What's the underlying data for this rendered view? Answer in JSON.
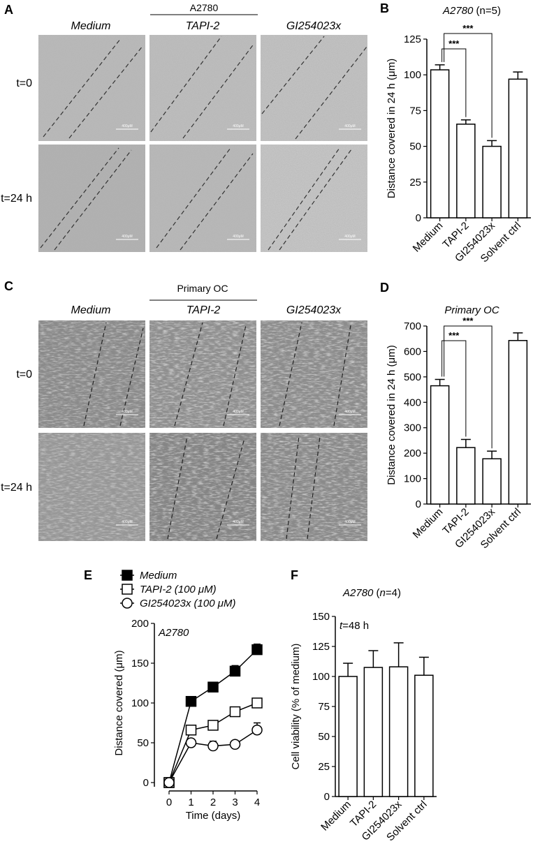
{
  "labels": {
    "A": "A",
    "B": "B",
    "C": "C",
    "D": "D",
    "E": "E",
    "F": "F"
  },
  "micrographs": [
    {
      "group": "A2780",
      "columns": [
        "Medium",
        "TAPI-2",
        "GI254023x"
      ],
      "rows": [
        "t=0",
        "t=24 h"
      ],
      "scale_bar": "400μM"
    },
    {
      "group": "Primary OC",
      "columns": [
        "Medium",
        "TAPI-2",
        "GI254023x"
      ],
      "rows": [
        "t=0",
        "t=24 h"
      ],
      "scale_bar": "400μM"
    }
  ],
  "chart_data": [
    {
      "id": "B",
      "type": "bar",
      "title_italic": "A2780",
      "title_rest": " (n=5)",
      "ylabel": "Distance covered in 24 h (μm)",
      "categories": [
        "Medium",
        "TAPI-2",
        "GI254023x",
        "Solvent ctrl"
      ],
      "values": [
        103.5,
        65.5,
        50,
        97
      ],
      "errors": [
        3.5,
        3,
        4,
        5
      ],
      "ylim": [
        0,
        125
      ],
      "yticks": [
        0,
        25,
        50,
        75,
        100,
        125
      ],
      "significance": [
        {
          "from": 0,
          "to": 1,
          "label": "***"
        },
        {
          "from": 0,
          "to": 2,
          "label": "***"
        }
      ]
    },
    {
      "id": "D",
      "type": "bar",
      "title_italic": "Primary OC",
      "title_rest": "",
      "ylabel": "Distance covered in 24 h (μm)",
      "categories": [
        "Medium",
        "TAPI-2",
        "GI254023x",
        "Solvent ctrl"
      ],
      "values": [
        465,
        222,
        178,
        643
      ],
      "errors": [
        25,
        32,
        30,
        30
      ],
      "ylim": [
        0,
        700
      ],
      "yticks": [
        0,
        100,
        200,
        300,
        400,
        500,
        600,
        700
      ],
      "significance": [
        {
          "from": 0,
          "to": 1,
          "label": "***"
        },
        {
          "from": 0,
          "to": 2,
          "label": "***"
        }
      ]
    },
    {
      "id": "E",
      "type": "line",
      "title_italic": "A2780",
      "xlabel": "Time (days)",
      "ylabel": "Distance covered (μm)",
      "x": [
        0,
        1,
        2,
        3,
        4
      ],
      "xlim": [
        0,
        4
      ],
      "xticks": [
        0,
        1,
        2,
        3,
        4
      ],
      "ylim": [
        0,
        200
      ],
      "yticks": [
        0,
        50,
        100,
        150,
        200
      ],
      "series": [
        {
          "name": "Medium",
          "marker": "filled-square",
          "values": [
            0,
            102,
            120,
            140,
            167
          ],
          "errors": [
            0,
            4,
            6,
            7,
            7
          ]
        },
        {
          "name": "TAPI-2 (100 μM)",
          "marker": "open-square",
          "values": [
            0,
            66,
            72,
            89,
            100
          ],
          "errors": [
            0,
            3,
            3,
            4,
            5
          ]
        },
        {
          "name": "GI254023x (100 μM)",
          "marker": "open-circle",
          "values": [
            0,
            50,
            46,
            48,
            66
          ],
          "errors": [
            0,
            3,
            6,
            4,
            9
          ]
        }
      ]
    },
    {
      "id": "F",
      "type": "bar",
      "title_italic": "A2780",
      "title_pre": "",
      "title_rest": " (",
      "title_n_italic": "n",
      "title_end": "=4)",
      "annotation": "t=48 h",
      "ylabel": "Cell viability (% of medium)",
      "categories": [
        "Medium",
        "TAPI-2",
        "GI254023x",
        "Solvent ctrl"
      ],
      "values": [
        100,
        107.5,
        108,
        101
      ],
      "errors": [
        11,
        14,
        20,
        15
      ],
      "ylim": [
        0,
        150
      ],
      "yticks": [
        0,
        25,
        50,
        75,
        100,
        125,
        150
      ]
    }
  ]
}
